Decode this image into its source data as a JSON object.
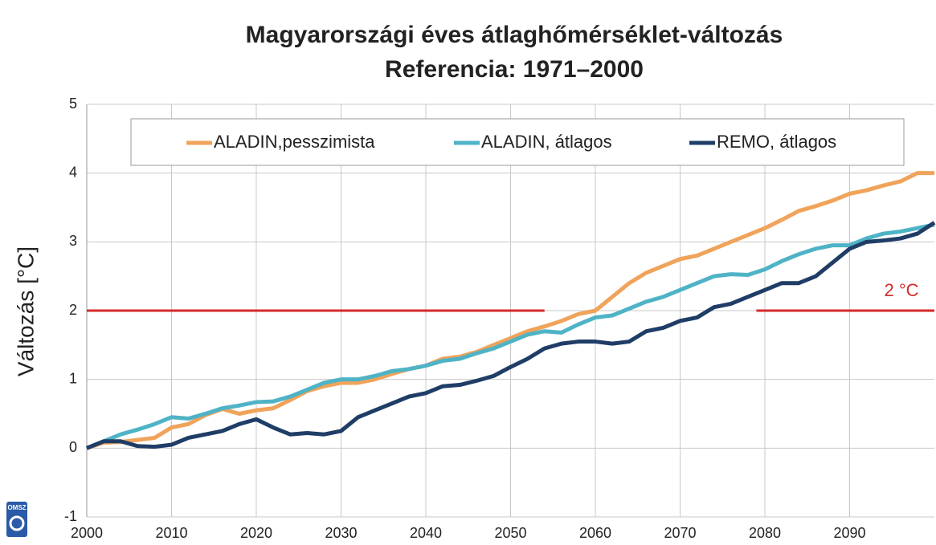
{
  "chart_data": {
    "type": "line",
    "title": "Magyarországi éves átlaghőmérséklet-változás",
    "subtitle": "Referencia: 1971–2000",
    "y_label": "Változás [°C]",
    "logo_text": "OMSZ",
    "x": [
      2000,
      2002,
      2004,
      2006,
      2008,
      2010,
      2012,
      2014,
      2016,
      2018,
      2020,
      2022,
      2024,
      2026,
      2028,
      2030,
      2032,
      2034,
      2036,
      2038,
      2040,
      2042,
      2044,
      2046,
      2048,
      2050,
      2052,
      2054,
      2056,
      2058,
      2060,
      2062,
      2064,
      2066,
      2068,
      2070,
      2072,
      2074,
      2076,
      2078,
      2080,
      2082,
      2084,
      2086,
      2088,
      2090,
      2092,
      2094,
      2096,
      2098,
      2100
    ],
    "series": [
      {
        "name": "ALADIN,pesszimista",
        "color": "#f0a35a",
        "values": [
          0,
          0.08,
          0.09,
          0.12,
          0.15,
          0.3,
          0.35,
          0.48,
          0.57,
          0.5,
          0.55,
          0.58,
          0.7,
          0.83,
          0.9,
          0.95,
          0.95,
          1.0,
          1.08,
          1.15,
          1.2,
          1.3,
          1.33,
          1.4,
          1.5,
          1.6,
          1.7,
          1.77,
          1.85,
          1.95,
          2.0,
          2.2,
          2.4,
          2.55,
          2.65,
          2.75,
          2.8,
          2.9,
          3.0,
          3.1,
          3.2,
          3.32,
          3.45,
          3.52,
          3.6,
          3.7,
          3.75,
          3.82,
          3.88,
          4.0,
          4.0
        ]
      },
      {
        "name": "ALADIN, átlagos",
        "color": "#4fb3c6",
        "values": [
          0,
          0.1,
          0.2,
          0.27,
          0.35,
          0.45,
          0.43,
          0.5,
          0.58,
          0.62,
          0.67,
          0.68,
          0.75,
          0.85,
          0.95,
          1.0,
          1.0,
          1.05,
          1.12,
          1.15,
          1.2,
          1.27,
          1.3,
          1.38,
          1.45,
          1.55,
          1.65,
          1.7,
          1.68,
          1.8,
          1.9,
          1.93,
          2.03,
          2.13,
          2.2,
          2.3,
          2.4,
          2.5,
          2.53,
          2.52,
          2.6,
          2.72,
          2.82,
          2.9,
          2.95,
          2.95,
          3.05,
          3.12,
          3.15,
          3.2,
          3.25
        ]
      },
      {
        "name": "REMO, átlagos",
        "color": "#1f3d66",
        "values": [
          0,
          0.1,
          0.1,
          0.03,
          0.02,
          0.05,
          0.15,
          0.2,
          0.25,
          0.35,
          0.42,
          0.3,
          0.2,
          0.22,
          0.2,
          0.25,
          0.45,
          0.55,
          0.65,
          0.75,
          0.8,
          0.9,
          0.92,
          0.98,
          1.05,
          1.18,
          1.3,
          1.45,
          1.52,
          1.55,
          1.55,
          1.52,
          1.55,
          1.7,
          1.75,
          1.85,
          1.9,
          2.05,
          2.1,
          2.2,
          2.3,
          2.4,
          2.4,
          2.5,
          2.7,
          2.9,
          3.0,
          3.02,
          3.05,
          3.12,
          3.28
        ]
      }
    ],
    "xlim": [
      2000,
      2100
    ],
    "xticks": [
      2000,
      2010,
      2020,
      2030,
      2040,
      2050,
      2060,
      2070,
      2080,
      2090
    ],
    "ylim": [
      -1,
      5
    ],
    "yticks": [
      -1,
      0,
      1,
      2,
      3,
      4,
      5
    ],
    "grid": true,
    "legend": "top",
    "reference_line": {
      "text": "2 °C",
      "y": 2,
      "color": "#d42a2a",
      "segments": [
        [
          2000,
          2054
        ],
        [
          2079,
          2100
        ]
      ]
    }
  }
}
